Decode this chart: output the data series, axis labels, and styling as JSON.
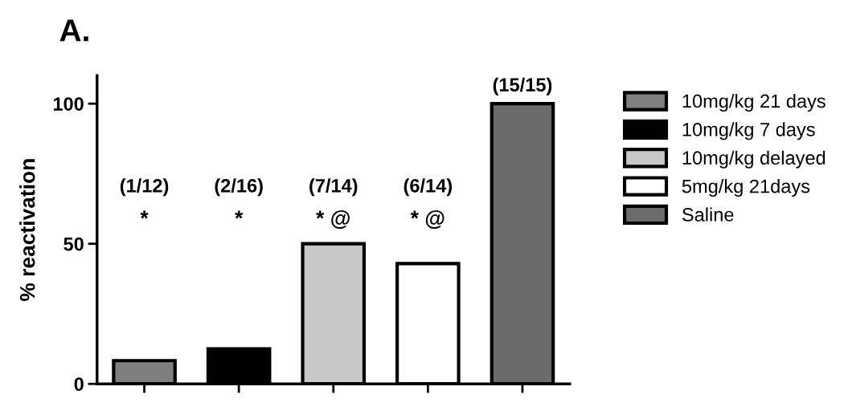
{
  "chart_data": {
    "type": "bar",
    "title": "A.",
    "ylabel": "% reactivation",
    "categories": [
      null,
      null,
      null,
      null,
      null
    ],
    "series": [
      {
        "name": "10mg/kg 21 days",
        "color": "#7f7f7f",
        "values": [
          8.3,
          null,
          null,
          null,
          null
        ]
      },
      {
        "name": "10mg/kg 7 days",
        "color": "#000000",
        "values": [
          null,
          12.5,
          null,
          null,
          null
        ]
      },
      {
        "name": "10mg/kg delayed",
        "color": "#c8c8c8",
        "values": [
          null,
          null,
          50,
          null,
          null
        ]
      },
      {
        "name": "5mg/kg 21days",
        "color": "#ffffff",
        "values": [
          null,
          null,
          null,
          42.9,
          null
        ]
      },
      {
        "name": "Saline",
        "color": "#6b6b6b",
        "values": [
          null,
          null,
          null,
          null,
          100
        ]
      }
    ],
    "value_labels": [
      "(1/12)",
      "(2/16)",
      "(7/14)",
      "(6/14)",
      "(15/15)"
    ],
    "annotations": [
      "*",
      "*",
      "* @",
      "* @"
    ],
    "ylim": [
      0,
      110
    ],
    "yticks": [
      0,
      50,
      100
    ],
    "grid": false,
    "legend": "right",
    "tick_labels": "y"
  }
}
